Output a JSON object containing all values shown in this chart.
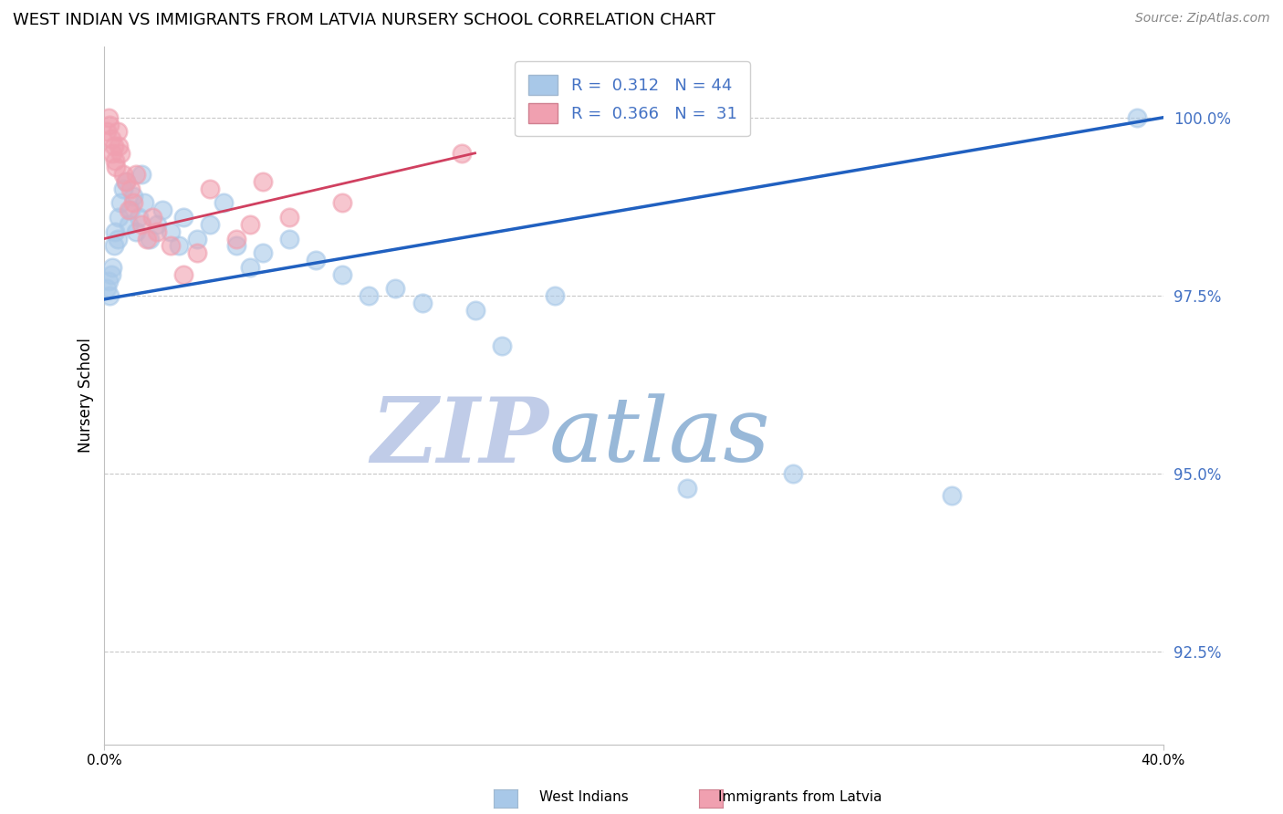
{
  "title": "WEST INDIAN VS IMMIGRANTS FROM LATVIA NURSERY SCHOOL CORRELATION CHART",
  "source": "Source: ZipAtlas.com",
  "ylabel": "Nursery School",
  "yticks": [
    92.5,
    95.0,
    97.5,
    100.0
  ],
  "ytick_labels": [
    "92.5%",
    "95.0%",
    "97.5%",
    "100.0%"
  ],
  "xmin": 0.0,
  "xmax": 40.0,
  "ymin": 91.2,
  "ymax": 101.0,
  "legend_blue_r": "0.312",
  "legend_blue_n": "44",
  "legend_pink_r": "0.366",
  "legend_pink_n": "31",
  "blue_color": "#a8c8e8",
  "pink_color": "#f0a0b0",
  "trendline_blue": "#2060c0",
  "trendline_pink": "#d04060",
  "blue_scatter_x": [
    0.1,
    0.15,
    0.2,
    0.25,
    0.3,
    0.35,
    0.4,
    0.5,
    0.55,
    0.6,
    0.7,
    0.8,
    0.9,
    1.0,
    1.1,
    1.2,
    1.3,
    1.4,
    1.5,
    1.7,
    2.0,
    2.2,
    2.5,
    2.8,
    3.0,
    3.5,
    4.0,
    4.5,
    5.0,
    5.5,
    6.0,
    7.0,
    8.0,
    9.0,
    10.0,
    11.0,
    12.0,
    14.0,
    15.0,
    17.0,
    22.0,
    26.0,
    32.0,
    39.0
  ],
  "blue_scatter_y": [
    97.6,
    97.7,
    97.5,
    97.8,
    97.9,
    98.2,
    98.4,
    98.3,
    98.6,
    98.8,
    99.0,
    99.1,
    98.5,
    98.7,
    98.9,
    98.4,
    98.6,
    99.2,
    98.8,
    98.3,
    98.5,
    98.7,
    98.4,
    98.2,
    98.6,
    98.3,
    98.5,
    98.8,
    98.2,
    97.9,
    98.1,
    98.3,
    98.0,
    97.8,
    97.5,
    97.6,
    97.4,
    97.3,
    96.8,
    97.5,
    94.8,
    95.0,
    94.7,
    100.0
  ],
  "pink_scatter_x": [
    0.1,
    0.15,
    0.2,
    0.25,
    0.3,
    0.35,
    0.4,
    0.45,
    0.5,
    0.55,
    0.6,
    0.7,
    0.8,
    0.9,
    1.0,
    1.1,
    1.2,
    1.4,
    1.6,
    1.8,
    2.0,
    2.5,
    3.0,
    3.5,
    4.0,
    5.0,
    5.5,
    6.0,
    7.0,
    9.0,
    13.5
  ],
  "pink_scatter_y": [
    99.8,
    100.0,
    99.9,
    99.7,
    99.5,
    99.6,
    99.4,
    99.3,
    99.8,
    99.6,
    99.5,
    99.2,
    99.1,
    98.7,
    99.0,
    98.8,
    99.2,
    98.5,
    98.3,
    98.6,
    98.4,
    98.2,
    97.8,
    98.1,
    99.0,
    98.3,
    98.5,
    99.1,
    98.6,
    98.8,
    99.5
  ],
  "watermark_zip": "ZIP",
  "watermark_atlas": "atlas",
  "watermark_color_zip": "#c0cce8",
  "watermark_color_atlas": "#98b8d8"
}
